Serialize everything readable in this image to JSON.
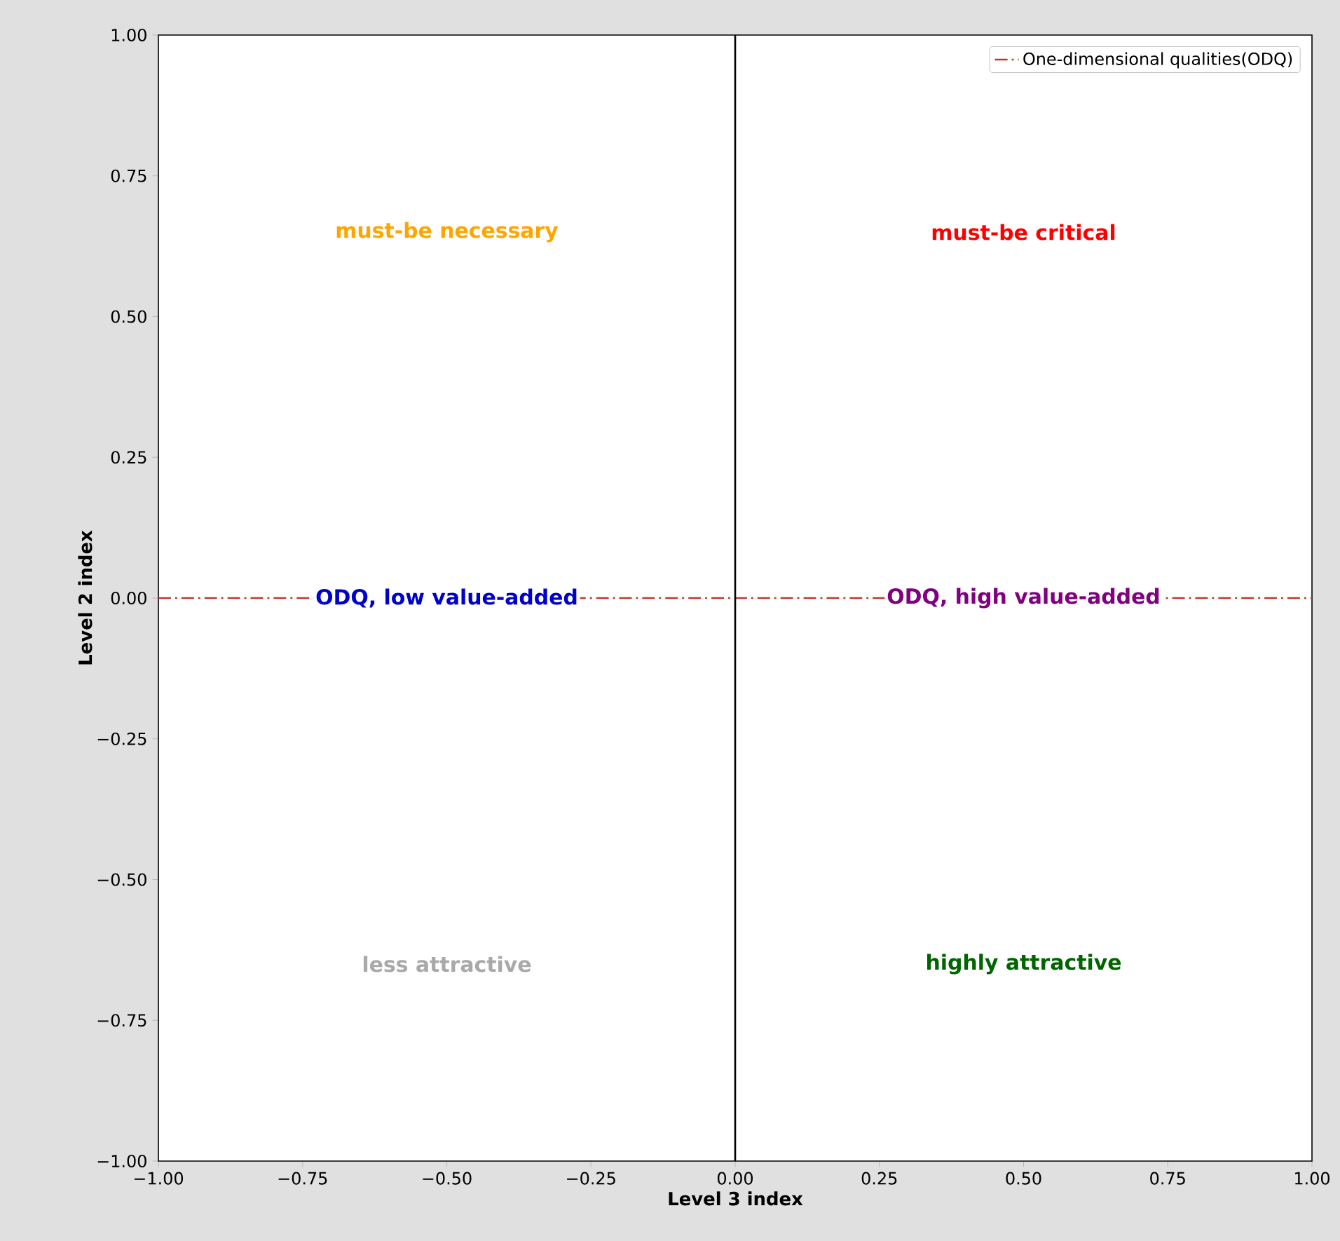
{
  "chart_data": {
    "type": "line",
    "xlabel": "Level 3 index",
    "ylabel": "Level 2 index",
    "xlim": [
      -1,
      1
    ],
    "ylim": [
      -1,
      1
    ],
    "xticks": [
      {
        "value": -1,
        "label": "−1.00"
      },
      {
        "value": -0.75,
        "label": "−0.75"
      },
      {
        "value": -0.5,
        "label": "−0.50"
      },
      {
        "value": -0.25,
        "label": "−0.25"
      },
      {
        "value": 0,
        "label": "0.00"
      },
      {
        "value": 0.25,
        "label": "0.25"
      },
      {
        "value": 0.5,
        "label": "0.50"
      },
      {
        "value": 0.75,
        "label": "0.75"
      },
      {
        "value": 1,
        "label": "1.00"
      }
    ],
    "yticks": [
      {
        "value": -1,
        "label": "−1.00"
      },
      {
        "value": -0.75,
        "label": "−0.75"
      },
      {
        "value": -0.5,
        "label": "−0.50"
      },
      {
        "value": -0.25,
        "label": "−0.25"
      },
      {
        "value": 0,
        "label": "0.00"
      },
      {
        "value": 0.25,
        "label": "0.25"
      },
      {
        "value": 0.5,
        "label": "0.50"
      },
      {
        "value": 0.75,
        "label": "0.75"
      },
      {
        "value": 1,
        "label": "1.00"
      }
    ],
    "series": [
      {
        "name": "One-dimensional qualities(ODQ)",
        "color": "#c0392b",
        "line_style": "dashdot",
        "x": [
          -1,
          1
        ],
        "values": [
          0,
          0
        ]
      }
    ],
    "ref_lines": [
      {
        "axis": "x",
        "value": 0,
        "color": "#000000",
        "line_style": "solid"
      }
    ],
    "annotations": [
      "must-be necessary",
      "must-be critical",
      "ODQ, low value-added",
      "ODQ, high value-added",
      "less attractive",
      "highly attractive"
    ],
    "legend": "top right"
  }
}
